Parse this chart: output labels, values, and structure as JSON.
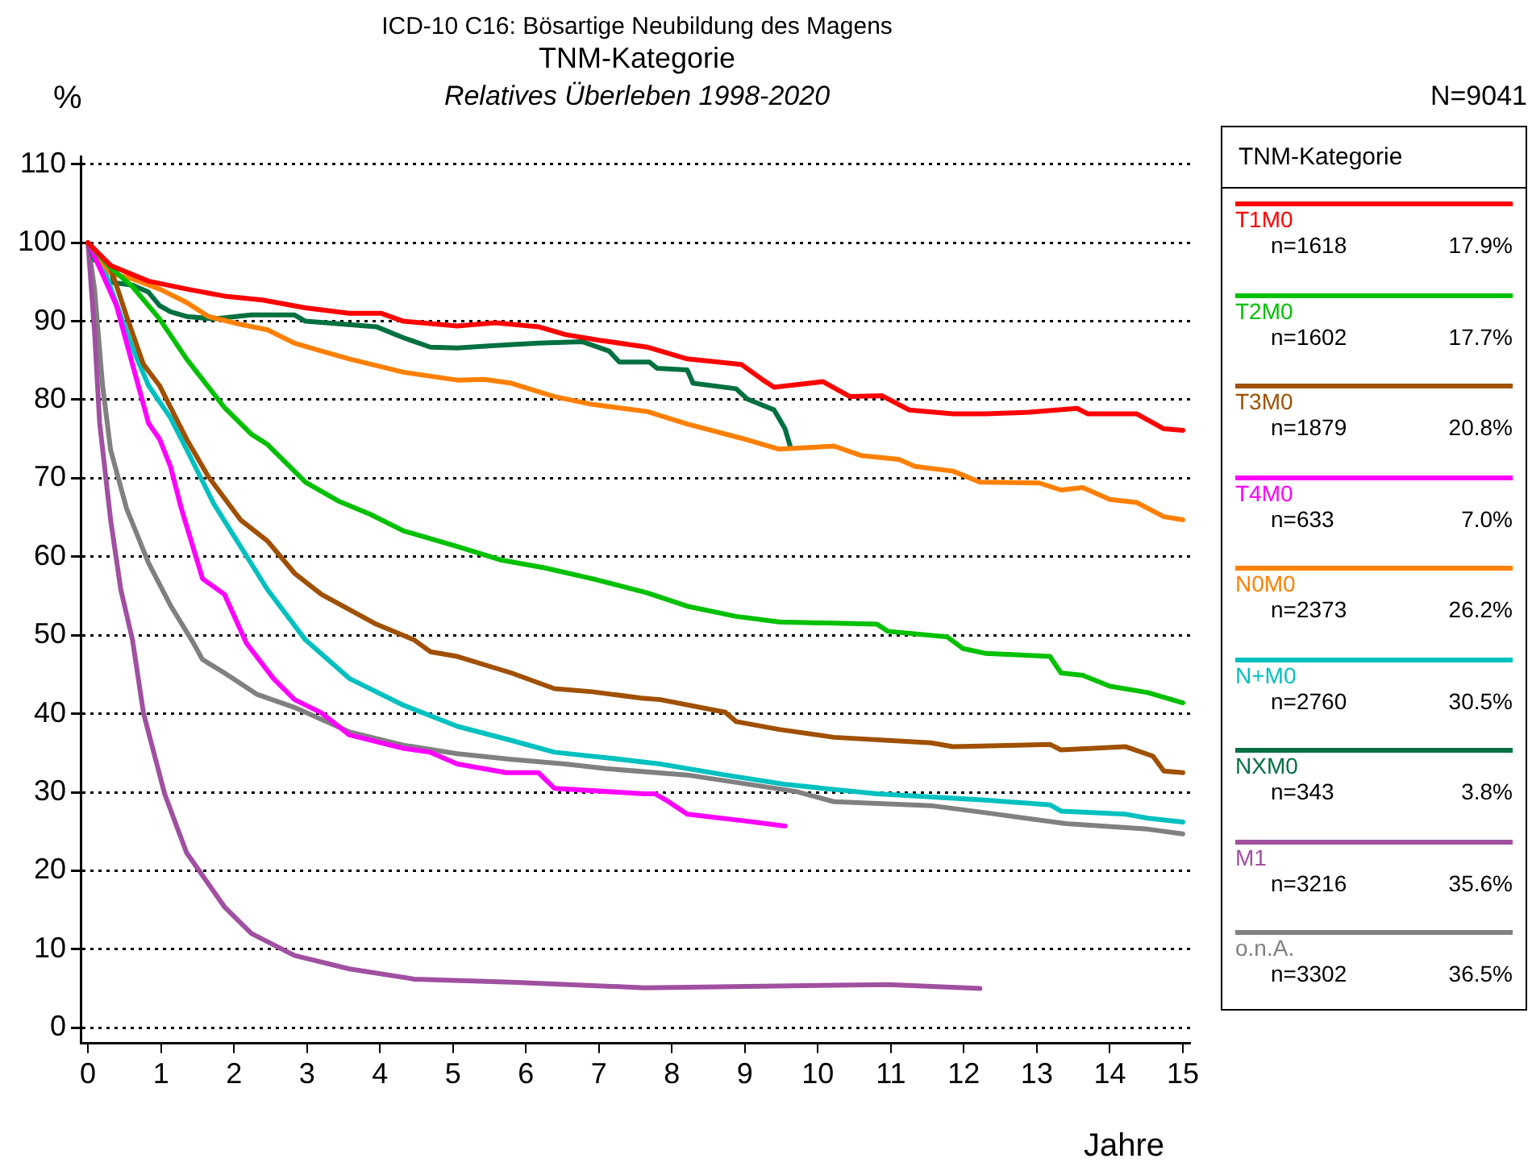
{
  "chart_data": {
    "type": "line",
    "title": "TNM-Kategorie",
    "subtitle": "Relatives Überleben 1998-2020",
    "xlabel": "Jahre",
    "ylabel": "%",
    "legend_title": "TNM-Kategorie",
    "annotations": [
      "ICD-10 C16: Bösartige Neubildung des Magens",
      "N=9041",
      "n=1618",
      "17.9%",
      "n=1602",
      "17.7%",
      "n=1879",
      "20.8%",
      "n=633",
      "7.0%",
      "n=2373",
      "26.2%",
      "n=2760",
      "30.5%",
      "n=343",
      "3.8%",
      "n=3216",
      "35.6%",
      "n=3302",
      "36.5%"
    ],
    "xlim": [
      -0.1,
      15.1
    ],
    "xticks": [
      0,
      1,
      2,
      3,
      4,
      5,
      6,
      7,
      8,
      9,
      10,
      11,
      12,
      13,
      14,
      15
    ],
    "ylim": [
      -2,
      111
    ],
    "yticks": [
      0,
      10,
      20,
      30,
      40,
      50,
      60,
      70,
      80,
      90,
      100,
      110
    ],
    "grid": "y",
    "legend": "right",
    "line_style": "solid",
    "marker": "none",
    "series": [
      {
        "name": "T1M0",
        "color": "#ff0000",
        "x": [
          0,
          0.31,
          0.83,
          1.35,
          1.87,
          2.39,
          2.98,
          3.58,
          4.02,
          4.32,
          5.06,
          5.58,
          6.17,
          6.54,
          6.99,
          7.66,
          8.21,
          8.95,
          9.25,
          9.4,
          10.07,
          10.44,
          10.88,
          11.25,
          11.85,
          12.29,
          12.89,
          13.55,
          13.7,
          14.37,
          14.74,
          15.0
        ],
        "values": [
          100,
          97.1,
          95.1,
          94.1,
          93.2,
          92.7,
          91.7,
          91,
          91,
          90,
          89.4,
          89.8,
          89.3,
          88.3,
          87.6,
          86.7,
          85.2,
          84.5,
          82.5,
          81.6,
          82.3,
          80.4,
          80.5,
          78.7,
          78.2,
          78.2,
          78.4,
          78.9,
          78.2,
          78.2,
          76.3,
          76.1
        ]
      },
      {
        "name": "T2M0",
        "color": "#00c000",
        "x": [
          0,
          0.31,
          0.61,
          0.98,
          1.35,
          1.87,
          2.24,
          2.46,
          2.98,
          3.43,
          3.87,
          4.32,
          5.06,
          5.65,
          6.25,
          6.91,
          7.66,
          8.21,
          8.88,
          9.47,
          10.81,
          10.96,
          11.77,
          11.99,
          12.29,
          13.18,
          13.33,
          13.63,
          14.0,
          14.52,
          15.0
        ],
        "values": [
          100,
          96.8,
          94.4,
          90.3,
          85.2,
          79,
          75.6,
          74.3,
          69.5,
          67.1,
          65.4,
          63.3,
          61.3,
          59.6,
          58.6,
          57.2,
          55.4,
          53.7,
          52.4,
          51.7,
          51.4,
          50.5,
          49.8,
          48.3,
          47.7,
          47.3,
          45.2,
          44.9,
          43.5,
          42.7,
          41.4
        ]
      },
      {
        "name": "T3M0",
        "color": "#a05000",
        "x": [
          0,
          0.31,
          0.53,
          0.76,
          0.98,
          1.35,
          1.65,
          2.09,
          2.46,
          2.83,
          3.2,
          3.95,
          4.47,
          4.69,
          5.06,
          5.8,
          6.39,
          6.91,
          7.58,
          7.84,
          8.73,
          8.88,
          9.47,
          10.22,
          11.55,
          11.85,
          13.18,
          13.33,
          14.22,
          14.59,
          14.74,
          15.0
        ],
        "values": [
          100,
          96.8,
          90.6,
          84.5,
          81.8,
          75,
          70.2,
          64.7,
          62,
          57.9,
          55.2,
          51.4,
          49.4,
          47.9,
          47.3,
          45.2,
          43.2,
          42.8,
          42,
          41.8,
          40.2,
          39,
          38,
          37,
          36.3,
          35.8,
          36.1,
          35.4,
          35.8,
          34.6,
          32.7,
          32.5
        ]
      },
      {
        "name": "T4M0",
        "color": "#ff00ff",
        "x": [
          0,
          0.16,
          0.39,
          0.61,
          0.83,
          0.98,
          1.13,
          1.28,
          1.57,
          1.87,
          2.17,
          2.54,
          2.83,
          3.2,
          3.58,
          4.32,
          4.69,
          5.06,
          5.73,
          6.17,
          6.39,
          7.62,
          7.77,
          7.92,
          8.21,
          8.95,
          9.55
        ],
        "values": [
          100,
          96.8,
          92,
          84.5,
          77,
          75,
          71.5,
          66.1,
          57.2,
          55.2,
          49,
          44.5,
          41.8,
          40.1,
          37.3,
          35.6,
          35.1,
          33.6,
          32.5,
          32.5,
          30.5,
          29.8,
          29.8,
          29,
          27.2,
          26.4,
          25.7
        ]
      },
      {
        "name": "N0M0",
        "color": "#ff8000",
        "x": [
          0,
          0.31,
          0.61,
          0.98,
          1.35,
          1.65,
          2.09,
          2.46,
          2.83,
          3.2,
          3.58,
          4.02,
          4.32,
          5.06,
          5.43,
          5.8,
          6.39,
          6.91,
          7.66,
          8.21,
          8.95,
          9.47,
          10.22,
          10.59,
          11.11,
          11.33,
          11.85,
          12.22,
          13.03,
          13.33,
          13.63,
          14.0,
          14.37,
          14.74,
          15.0
        ],
        "values": [
          100,
          96.1,
          95.4,
          94.1,
          92.4,
          90.6,
          89.6,
          88.9,
          87.2,
          86.2,
          85.2,
          84.2,
          83.5,
          82.5,
          82.6,
          82.1,
          80.4,
          79.4,
          78.5,
          76.9,
          75.1,
          73.7,
          74.1,
          72.9,
          72.4,
          71.5,
          70.9,
          69.5,
          69.4,
          68.5,
          68.8,
          67.3,
          66.9,
          65.1,
          64.7
        ]
      },
      {
        "name": "N+M0",
        "color": "#00c0c0",
        "x": [
          0,
          0.24,
          0.61,
          0.83,
          1.13,
          1.35,
          1.72,
          2.09,
          2.46,
          2.98,
          3.58,
          4.32,
          5.06,
          5.8,
          6.39,
          7.1,
          7.84,
          8.73,
          9.55,
          10.81,
          12.29,
          13.18,
          13.33,
          14.22,
          14.52,
          15.0
        ],
        "values": [
          100,
          96.1,
          86.6,
          81.8,
          77.7,
          73.7,
          66.8,
          61.3,
          55.8,
          49.4,
          44.5,
          41.1,
          38.4,
          36.6,
          35.1,
          34.4,
          33.6,
          32.2,
          31,
          29.8,
          29,
          28.4,
          27.6,
          27.2,
          26.7,
          26.2
        ]
      },
      {
        "name": "NXM0",
        "color": "#007040",
        "x": [
          0,
          0.09,
          0.31,
          0.35,
          0.61,
          0.83,
          0.98,
          1.13,
          1.35,
          1.72,
          2.24,
          2.83,
          2.98,
          3.95,
          4.32,
          4.69,
          5.06,
          5.58,
          6.17,
          6.77,
          7.14,
          7.28,
          7.69,
          7.8,
          8.21,
          8.29,
          8.88,
          9.03,
          9.4,
          9.55,
          9.62
        ],
        "values": [
          100,
          97.8,
          97.1,
          94.9,
          94.6,
          93.7,
          92,
          91.2,
          90.6,
          90.3,
          90.8,
          90.8,
          90,
          89.3,
          87.9,
          86.7,
          86.6,
          86.9,
          87.2,
          87.4,
          86.2,
          84.8,
          84.8,
          84,
          83.8,
          82.1,
          81.4,
          80.1,
          78.7,
          76.3,
          74.1
        ]
      },
      {
        "name": "M1",
        "color": "#a050a0",
        "x": [
          0,
          0.09,
          0.16,
          0.31,
          0.45,
          0.61,
          0.76,
          1.05,
          1.35,
          1.87,
          2.24,
          2.83,
          3.58,
          4.47,
          5.8,
          7.62,
          10.96,
          12.22
        ],
        "values": [
          100,
          88.6,
          77,
          64.7,
          55.8,
          49.4,
          40.1,
          29.8,
          22.3,
          15.4,
          12,
          9.2,
          7.5,
          6.2,
          5.8,
          5.1,
          5.5,
          5
        ]
      },
      {
        "name": "o.n.A.",
        "color": "#808080",
        "x": [
          0,
          0.09,
          0.2,
          0.31,
          0.53,
          0.83,
          1.13,
          1.42,
          1.57,
          1.87,
          2.31,
          2.83,
          3.58,
          4.32,
          5.06,
          5.8,
          6.54,
          7.1,
          8.21,
          9.7,
          10.22,
          11.55,
          12.29,
          13.4,
          14.52,
          15.0
        ],
        "values": [
          100,
          94.1,
          81.8,
          73.6,
          66.1,
          59.2,
          53.8,
          49.4,
          46.9,
          45.2,
          42.5,
          40.8,
          37.7,
          36,
          34.9,
          34.2,
          33.6,
          33,
          32.2,
          30.1,
          28.8,
          28.3,
          27.4,
          26,
          25.3,
          24.7
        ]
      }
    ]
  }
}
